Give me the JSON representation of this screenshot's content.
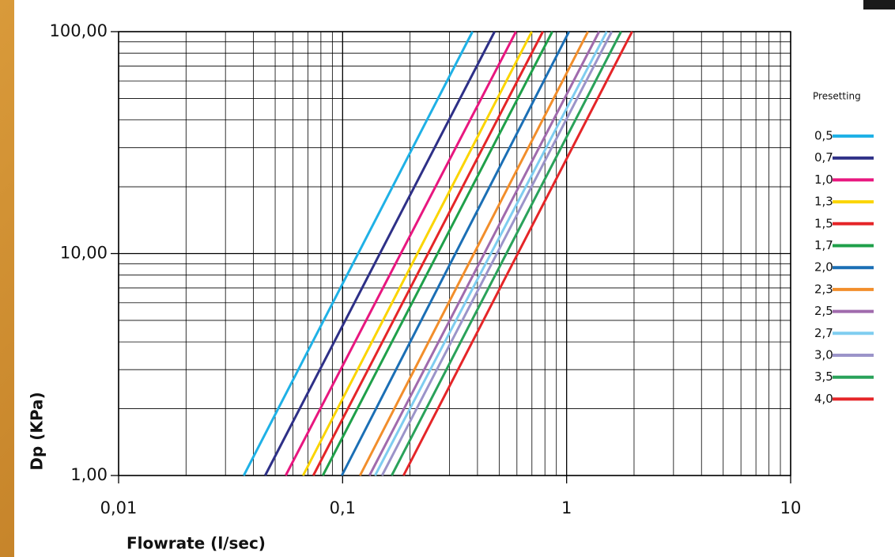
{
  "chart_data": {
    "type": "line",
    "xlabel": "Flowrate (l/sec)",
    "ylabel": "Dp (KPa)",
    "legend_title": "Presetting",
    "log_x": true,
    "log_y": true,
    "grid": true,
    "legend": "right",
    "xlim": [
      0.01,
      10
    ],
    "ylim": [
      1,
      100
    ],
    "xticks": [
      {
        "value": 0.01,
        "label": "0,01"
      },
      {
        "value": 0.1,
        "label": "0,1"
      },
      {
        "value": 1,
        "label": "1"
      },
      {
        "value": 10,
        "label": "10"
      }
    ],
    "yticks": [
      {
        "value": 1,
        "label": "1,00"
      },
      {
        "value": 10,
        "label": "10,00"
      },
      {
        "value": 100,
        "label": "100,00"
      }
    ],
    "series": [
      {
        "name": "0,5",
        "color": "#1fb1e6",
        "x": [
          0.0362,
          0.38
        ],
        "values": [
          1,
          100
        ]
      },
      {
        "name": "0,7",
        "color": "#2e3087",
        "x": [
          0.0451,
          0.477
        ],
        "values": [
          1,
          100
        ]
      },
      {
        "name": "1,0",
        "color": "#e8177f",
        "x": [
          0.0557,
          0.594
        ],
        "values": [
          1,
          100
        ]
      },
      {
        "name": "1,3",
        "color": "#fbd500",
        "x": [
          0.0666,
          0.699
        ],
        "values": [
          1,
          100
        ]
      },
      {
        "name": "1,5",
        "color": "#e52528",
        "x": [
          0.074,
          0.783
        ],
        "values": [
          1,
          100
        ]
      },
      {
        "name": "1,7",
        "color": "#1fa04a",
        "x": [
          0.0816,
          0.863
        ],
        "values": [
          1,
          100
        ]
      },
      {
        "name": "2,0",
        "color": "#1b6fb5",
        "x": [
          0.0992,
          1.025
        ],
        "values": [
          1,
          100
        ]
      },
      {
        "name": "2,3",
        "color": "#f28e2b",
        "x": [
          0.1196,
          1.245
        ],
        "values": [
          1,
          100
        ]
      },
      {
        "name": "2,5",
        "color": "#a06bad",
        "x": [
          0.1318,
          1.396
        ],
        "values": [
          1,
          100
        ]
      },
      {
        "name": "2,7",
        "color": "#7fcdf0",
        "x": [
          0.1396,
          1.51
        ],
        "values": [
          1,
          100
        ]
      },
      {
        "name": "3,0",
        "color": "#9b94c9",
        "x": [
          0.15,
          1.59
        ],
        "values": [
          1,
          100
        ]
      },
      {
        "name": "3,5",
        "color": "#2aa25a",
        "x": [
          0.1656,
          1.75
        ],
        "values": [
          1,
          100
        ]
      },
      {
        "name": "4,0",
        "color": "#e52528",
        "x": [
          0.187,
          1.96
        ],
        "values": [
          1,
          100
        ]
      }
    ]
  }
}
